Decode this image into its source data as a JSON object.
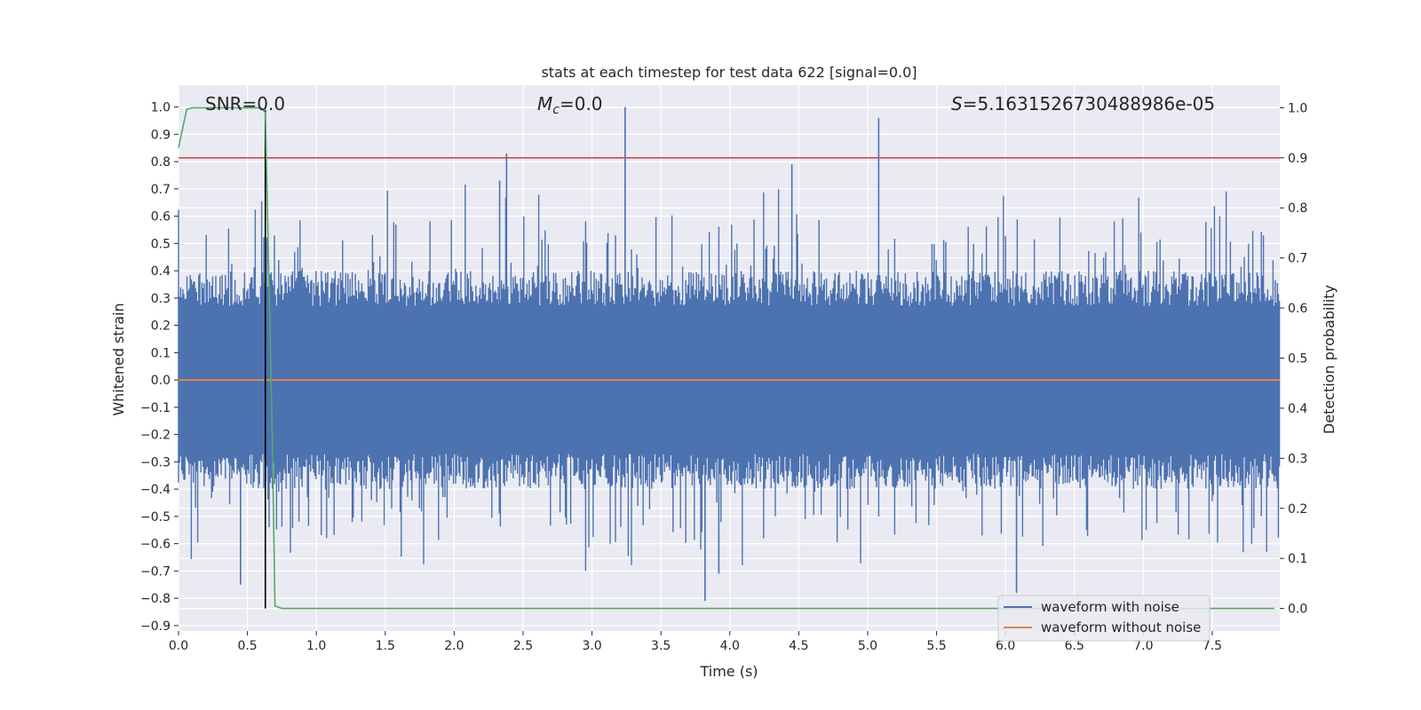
{
  "chart_data": {
    "type": "line",
    "title": "stats at each timestep for test data 622 [signal=0.0]",
    "xlabel": "Time (s)",
    "ylabel": "Whitened strain",
    "y2label": "Detection probability",
    "xlim": [
      0.0,
      7.99
    ],
    "ylim": [
      -0.92,
      1.08
    ],
    "y2lim": [
      -0.045,
      1.045
    ],
    "x_ticks": [
      "0.0",
      "0.5",
      "1.0",
      "1.5",
      "2.0",
      "2.5",
      "3.0",
      "3.5",
      "4.0",
      "4.5",
      "5.0",
      "5.5",
      "6.0",
      "6.5",
      "7.0",
      "7.5"
    ],
    "y_ticks": [
      "1.0",
      "0.9",
      "0.8",
      "0.7",
      "0.6",
      "0.5",
      "0.4",
      "0.3",
      "0.2",
      "0.1",
      "0.0",
      "−0.1",
      "−0.2",
      "−0.3",
      "−0.4",
      "−0.5",
      "−0.6",
      "−0.7",
      "−0.8",
      "−0.9"
    ],
    "y2_ticks": [
      "1.0",
      "0.9",
      "0.8",
      "0.7",
      "0.6",
      "0.5",
      "0.4",
      "0.3",
      "0.2",
      "0.1",
      "0.0"
    ],
    "annotations": {
      "snr": "SNR=0.0",
      "mc_symbol": "M",
      "mc_sub": "c",
      "mc_value": "=0.0",
      "s_symbol": "S",
      "s_value": "=5.1631526730488986e-05"
    },
    "series": [
      {
        "name": "waveform with noise",
        "color": "#4c72b0",
        "envelope": {
          "upper": 0.4,
          "lower": -0.4,
          "core": 0.27
        },
        "notable_spikes": [
          {
            "x": 3.24,
            "y": 1.0
          },
          {
            "x": 5.08,
            "y": 0.96
          },
          {
            "x": 2.38,
            "y": 0.83
          },
          {
            "x": 4.45,
            "y": 0.79
          },
          {
            "x": 2.33,
            "y": 0.73
          },
          {
            "x": 3.82,
            "y": -0.81
          },
          {
            "x": 6.08,
            "y": -0.78
          },
          {
            "x": 0.45,
            "y": -0.75
          },
          {
            "x": 3.92,
            "y": -0.71
          }
        ]
      },
      {
        "name": "waveform without noise",
        "color": "#dd8452",
        "x": [
          0.0,
          7.99
        ],
        "y": [
          0.0,
          0.0
        ]
      },
      {
        "name": "detection probability",
        "axis": "right",
        "color": "#55a868",
        "x": [
          0.0,
          0.06,
          0.1,
          0.2,
          0.4,
          0.6,
          0.63,
          0.68,
          0.7,
          0.75,
          1.0,
          3.0,
          5.0,
          7.0,
          7.95
        ],
        "y": [
          0.92,
          0.997,
          1.0,
          1.0,
          1.0,
          1.0,
          0.99,
          0.35,
          0.005,
          0.0,
          0.0,
          0.0,
          0.0,
          0.0,
          0.0
        ]
      }
    ],
    "threshold": {
      "axis": "right",
      "value": 0.9,
      "color": "#c44e52"
    },
    "marker_line": {
      "x": 0.63,
      "color": "#000000"
    },
    "legend": {
      "location": "lower-right"
    }
  }
}
